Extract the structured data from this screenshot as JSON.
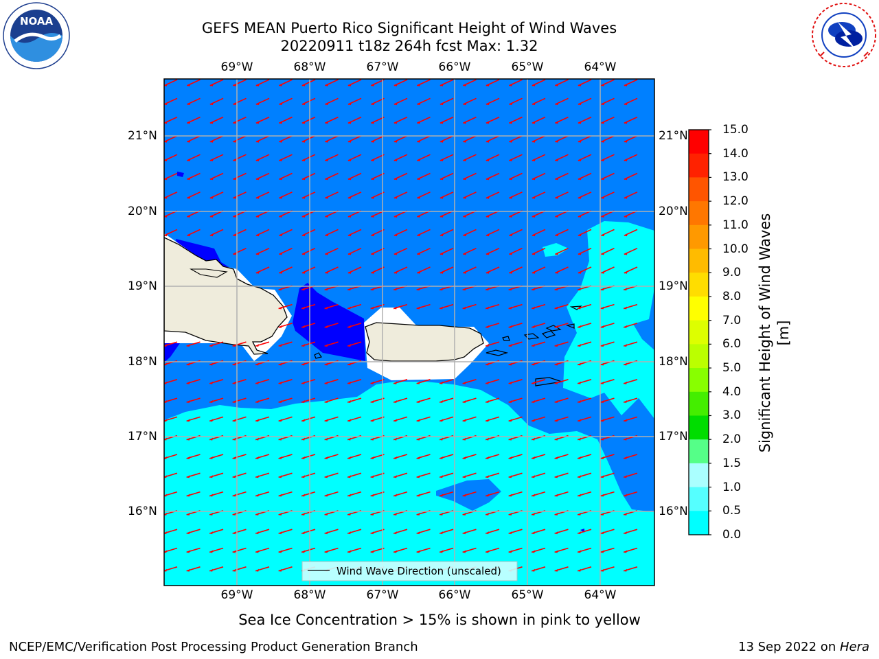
{
  "header": {
    "title_line1": "GEFS MEAN Puerto Rico Significant Height of Wind Waves",
    "title_line2": "20220911 t18z 264h fcst   Max: 1.32"
  },
  "logos": {
    "noaa_text": "NOAA",
    "noaa_ring_text": "NATIONAL OCEANIC AND ATMOSPHERIC ADMINISTRATION · U.S. DEPARTMENT OF COMMERCE",
    "nws_ring_text": "NATIONAL WEATHER SERVICE"
  },
  "map": {
    "lon_labels": [
      "69°W",
      "68°W",
      "67°W",
      "66°W",
      "65°W",
      "64°W"
    ],
    "lat_labels": [
      "21°N",
      "20°N",
      "19°N",
      "18°N",
      "17°N",
      "16°N"
    ],
    "legend_label": "Wind Wave Direction (unscaled)",
    "colors": {
      "land": "#efecdc",
      "band_0_05": "#0000ff",
      "band_05_1": "#0080ff",
      "band_1_15": "#00ffff",
      "arrow": "#ff0000",
      "grid": "#b0b0b0",
      "coast": "#000000"
    }
  },
  "colorbar": {
    "label": "Significant Height of Wind Waves [m]",
    "ticks": [
      "15.0",
      "14.0",
      "13.0",
      "12.0",
      "11.0",
      "10.0",
      "9.0",
      "8.0",
      "7.0",
      "6.0",
      "5.0",
      "4.0",
      "3.0",
      "2.0",
      "1.5",
      "1.0",
      "0.5",
      "0.0"
    ],
    "colors": [
      "#0000ff",
      "#0080ff",
      "#00ffff",
      "#55ffff",
      "#aaffff",
      "#55ff88",
      "#00dd00",
      "#00ff00",
      "#88ff00",
      "#bbff00",
      "#ddff00",
      "#ffff00",
      "#ffdd00",
      "#ffbb00",
      "#ff9900",
      "#ff7700",
      "#ff5500",
      "#ff2200",
      "#ff0000"
    ]
  },
  "footer": {
    "sea_ice_note": "Sea Ice Concentration > 15% is shown in pink to yellow",
    "branch": "NCEP/EMC/Verification Post Processing Product Generation Branch",
    "date_prefix": "13 Sep 2022 on ",
    "machine": "Hera"
  }
}
